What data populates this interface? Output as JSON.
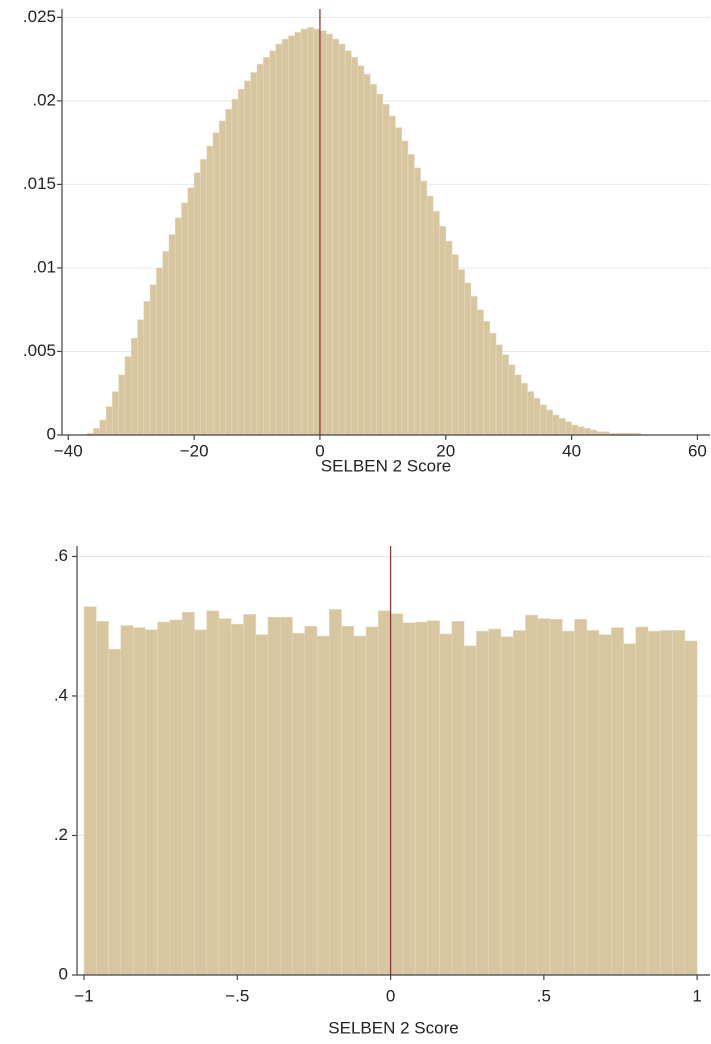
{
  "chart_data": [
    {
      "type": "histogram",
      "xlabel": "SELBEN 2 Score",
      "color": "#d8c6a0",
      "line_color": "#8b3a3a",
      "xline": 0,
      "grid": true,
      "bins": [
        -37,
        -36,
        -35,
        -34,
        -33,
        -32,
        -31,
        -30,
        -29,
        -28,
        -27,
        -26,
        -25,
        -24,
        -23,
        -22,
        -21,
        -20,
        -19,
        -18,
        -17,
        -16,
        -15,
        -14,
        -13,
        -12,
        -11,
        -10,
        -9,
        -8,
        -7,
        -6,
        -5,
        -4,
        -3,
        -2,
        -1,
        0,
        1,
        2,
        3,
        4,
        5,
        6,
        7,
        8,
        9,
        10,
        11,
        12,
        13,
        14,
        15,
        16,
        17,
        18,
        19,
        20,
        21,
        22,
        23,
        24,
        25,
        26,
        27,
        28,
        29,
        30,
        31,
        32,
        33,
        34,
        35,
        36,
        37,
        38,
        39,
        40,
        41,
        42,
        43,
        44,
        45,
        46,
        47,
        48,
        49,
        50,
        51
      ],
      "values": [
        0.0001,
        0.0004,
        0.0009,
        0.0017,
        0.0026,
        0.0036,
        0.0047,
        0.0058,
        0.0069,
        0.008,
        0.009,
        0.01,
        0.011,
        0.012,
        0.013,
        0.0139,
        0.0148,
        0.0157,
        0.0165,
        0.0173,
        0.0181,
        0.0188,
        0.0195,
        0.0201,
        0.0207,
        0.0212,
        0.0217,
        0.0222,
        0.0226,
        0.023,
        0.0234,
        0.0237,
        0.0239,
        0.0241,
        0.0243,
        0.0244,
        0.0243,
        0.0242,
        0.024,
        0.0237,
        0.0234,
        0.023,
        0.0226,
        0.0221,
        0.0216,
        0.021,
        0.0204,
        0.0198,
        0.0191,
        0.0184,
        0.0176,
        0.0168,
        0.016,
        0.0152,
        0.0143,
        0.0134,
        0.0125,
        0.0116,
        0.0108,
        0.0099,
        0.0091,
        0.0083,
        0.0075,
        0.0068,
        0.0061,
        0.0054,
        0.0048,
        0.0042,
        0.0036,
        0.0031,
        0.0026,
        0.0022,
        0.0018,
        0.0015,
        0.0012,
        0.001,
        0.0008,
        0.0006,
        0.0005,
        0.0004,
        0.0003,
        0.0002,
        0.0002,
        0.0001,
        0.0001,
        0.0001,
        0.0001,
        0.0001
      ],
      "xlim": [
        -41,
        62
      ],
      "xticks": [
        {
          "value": -40,
          "label": "−40"
        },
        {
          "value": -20,
          "label": "−20"
        },
        0,
        20,
        40,
        60
      ],
      "ylim": [
        0,
        0.0255
      ],
      "yticks": [
        0,
        {
          "value": 0.005,
          "label": ".005"
        },
        {
          "value": 0.01,
          "label": ".01"
        },
        {
          "value": 0.015,
          "label": ".015"
        },
        {
          "value": 0.02,
          "label": ".02"
        },
        {
          "value": 0.025,
          "label": ".025"
        }
      ]
    },
    {
      "type": "histogram",
      "xlabel": "SELBEN 2 Score",
      "color": "#d8c6a0",
      "line_color": "#8b3a3a",
      "xline": 0,
      "grid": true,
      "bins": [
        -1,
        -0.96,
        -0.92,
        -0.88,
        -0.84,
        -0.8,
        -0.76,
        -0.72,
        -0.68,
        -0.64,
        -0.6,
        -0.56,
        -0.52,
        -0.48,
        -0.44,
        -0.4,
        -0.36,
        -0.32,
        -0.28,
        -0.24,
        -0.2,
        -0.16,
        -0.12,
        -0.08,
        -0.04,
        0,
        0.04,
        0.08,
        0.12,
        0.16,
        0.2,
        0.24,
        0.28,
        0.32,
        0.36,
        0.4,
        0.44,
        0.48,
        0.52,
        0.56,
        0.6,
        0.64,
        0.68,
        0.72,
        0.76,
        0.8,
        0.84,
        0.88,
        0.92,
        0.96,
        1
      ],
      "values": [
        0.528,
        0.507,
        0.467,
        0.501,
        0.498,
        0.495,
        0.506,
        0.509,
        0.52,
        0.495,
        0.522,
        0.511,
        0.503,
        0.517,
        0.488,
        0.513,
        0.513,
        0.49,
        0.5,
        0.486,
        0.524,
        0.5,
        0.486,
        0.499,
        0.522,
        0.518,
        0.505,
        0.506,
        0.508,
        0.489,
        0.507,
        0.472,
        0.493,
        0.496,
        0.485,
        0.494,
        0.516,
        0.511,
        0.51,
        0.493,
        0.51,
        0.494,
        0.488,
        0.498,
        0.475,
        0.499,
        0.493,
        0.494,
        0.494,
        0.479
      ],
      "xlim": [
        -1.023,
        1.042
      ],
      "xticks": [
        {
          "value": -1,
          "label": "−1"
        },
        {
          "value": -0.5,
          "label": "−.5"
        },
        0,
        {
          "value": 0.5,
          "label": ".5"
        },
        1
      ],
      "ylim": [
        0,
        0.615
      ],
      "yticks": [
        0,
        {
          "value": 0.2,
          "label": ".2"
        },
        {
          "value": 0.4,
          "label": ".4"
        },
        {
          "value": 0.6,
          "label": ".6"
        }
      ]
    }
  ]
}
